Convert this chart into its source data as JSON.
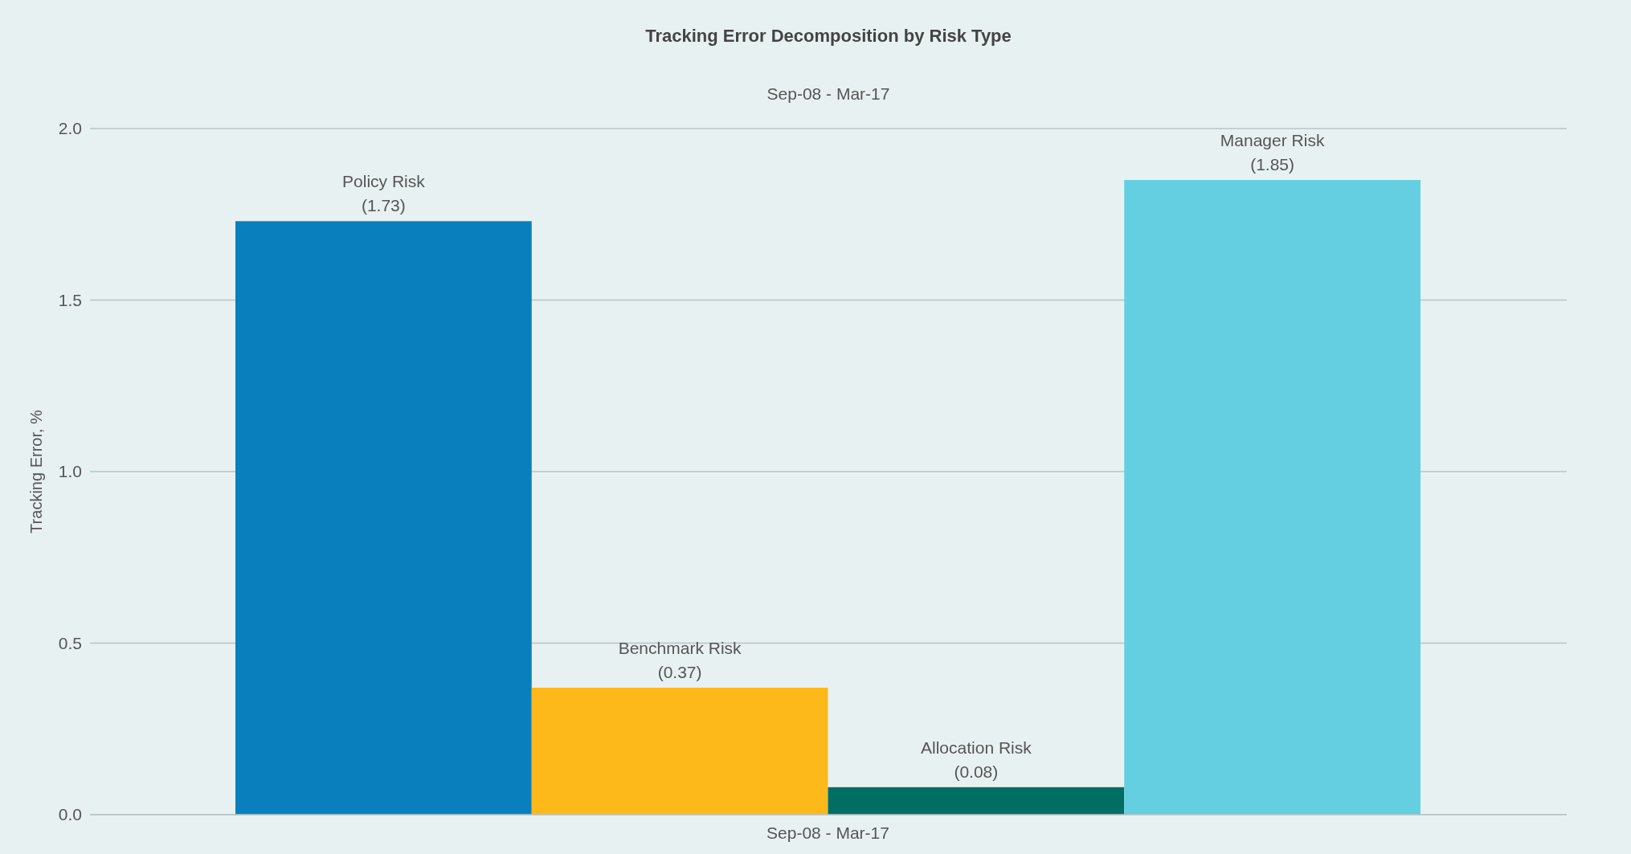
{
  "chart_data": {
    "type": "bar",
    "title": "Tracking Error Decomposition by Risk Type",
    "subtitle": "Sep-08 - Mar-17",
    "ylabel": "Tracking Error, %",
    "categories": [
      "Sep-08 - Mar-17"
    ],
    "series": [
      {
        "name": "Policy Risk",
        "color": "#0a7fbd",
        "values": [
          1.73
        ],
        "value_labels": [
          "(1.73)"
        ]
      },
      {
        "name": "Benchmark Risk",
        "color": "#fdb81a",
        "values": [
          0.37
        ],
        "value_labels": [
          "(0.37)"
        ]
      },
      {
        "name": "Allocation Risk",
        "color": "#006e63",
        "values": [
          0.08
        ],
        "value_labels": [
          "(0.08)"
        ]
      },
      {
        "name": "Manager Risk",
        "color": "#63cfe0",
        "values": [
          1.85
        ],
        "value_labels": [
          "(1.85)"
        ]
      }
    ],
    "ylim": [
      0,
      2
    ],
    "yticks": [
      {
        "value": 0,
        "label": "0.0"
      },
      {
        "value": 0.5,
        "label": "0.5"
      },
      {
        "value": 1,
        "label": "1.0"
      },
      {
        "value": 1.5,
        "label": "1.5"
      },
      {
        "value": 2,
        "label": "2.0"
      }
    ],
    "grid": "y"
  }
}
